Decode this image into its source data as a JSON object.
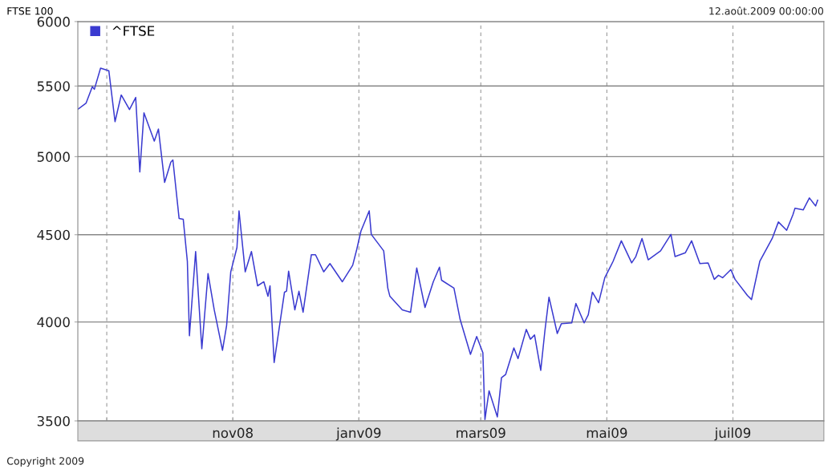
{
  "chart_data": {
    "type": "line",
    "title": "FTSE 100",
    "annotations": [
      "12.août.2009 00:00:00",
      "Copyright 2009"
    ],
    "x": [
      "2008-08-18",
      "2008-08-22",
      "2008-08-25",
      "2008-08-26",
      "2008-08-29",
      "2008-09-02",
      "2008-09-05",
      "2008-09-08",
      "2008-09-12",
      "2008-09-15",
      "2008-09-17",
      "2008-09-19",
      "2008-09-24",
      "2008-09-26",
      "2008-09-29",
      "2008-10-02",
      "2008-10-03",
      "2008-10-06",
      "2008-10-08",
      "2008-10-10",
      "2008-10-11",
      "2008-10-14",
      "2008-10-17",
      "2008-10-20",
      "2008-10-23",
      "2008-10-27",
      "2008-10-29",
      "2008-10-31",
      "2008-11-03",
      "2008-11-04",
      "2008-11-07",
      "2008-11-10",
      "2008-11-13",
      "2008-11-16",
      "2008-11-18",
      "2008-11-19",
      "2008-11-21",
      "2008-11-26",
      "2008-11-27",
      "2008-11-28",
      "2008-12-01",
      "2008-12-03",
      "2008-12-05",
      "2008-12-09",
      "2008-12-11",
      "2008-12-15",
      "2008-12-18",
      "2008-12-24",
      "2008-12-29",
      "2008-12-31",
      "2009-01-02",
      "2009-01-06",
      "2009-01-07",
      "2009-01-13",
      "2009-01-15",
      "2009-01-16",
      "2009-01-22",
      "2009-01-26",
      "2009-01-29",
      "2009-02-02",
      "2009-02-06",
      "2009-02-09",
      "2009-02-10",
      "2009-02-16",
      "2009-02-19",
      "2009-02-24",
      "2009-02-27",
      "2009-03-02",
      "2009-03-03",
      "2009-03-05",
      "2009-03-09",
      "2009-03-11",
      "2009-03-13",
      "2009-03-17",
      "2009-03-19",
      "2009-03-23",
      "2009-03-25",
      "2009-03-27",
      "2009-03-30",
      "2009-04-01",
      "2009-04-03",
      "2009-04-07",
      "2009-04-09",
      "2009-04-14",
      "2009-04-16",
      "2009-04-20",
      "2009-04-22",
      "2009-04-24",
      "2009-04-27",
      "2009-04-30",
      "2009-05-04",
      "2009-05-08",
      "2009-05-13",
      "2009-05-15",
      "2009-05-18",
      "2009-05-21",
      "2009-05-27",
      "2009-06-01",
      "2009-06-03",
      "2009-06-08",
      "2009-06-11",
      "2009-06-15",
      "2009-06-19",
      "2009-06-22",
      "2009-06-24",
      "2009-06-26",
      "2009-06-30",
      "2009-07-02",
      "2009-07-08",
      "2009-07-10",
      "2009-07-14",
      "2009-07-20",
      "2009-07-23",
      "2009-07-27",
      "2009-07-30",
      "2009-07-31",
      "2009-08-04",
      "2009-08-07",
      "2009-08-10",
      "2009-08-11"
    ],
    "series": [
      {
        "name": "^FTSE",
        "color": "#3a3ad0",
        "values": [
          5330,
          5375,
          5495,
          5476,
          5634,
          5615,
          5242,
          5434,
          5328,
          5416,
          4898,
          5305,
          5106,
          5190,
          4829,
          4963,
          4978,
          4600,
          4595,
          4341,
          3926,
          4399,
          3858,
          4270,
          4066,
          3850,
          3982,
          4280,
          4423,
          4647,
          4280,
          4399,
          4200,
          4223,
          4141,
          4200,
          3787,
          4164,
          4170,
          4284,
          4066,
          4169,
          4053,
          4380,
          4380,
          4280,
          4328,
          4223,
          4318,
          4413,
          4522,
          4647,
          4502,
          4403,
          4187,
          4141,
          4066,
          4053,
          4302,
          4079,
          4223,
          4307,
          4232,
          4187,
          4013,
          3829,
          3922,
          3837,
          3507,
          3645,
          3519,
          3710,
          3726,
          3862,
          3807,
          3960,
          3908,
          3930,
          3747,
          3951,
          4136,
          3938,
          3991,
          3995,
          4101,
          3995,
          4039,
          4164,
          4105,
          4246,
          4341,
          4463,
          4332,
          4369,
          4477,
          4350,
          4403,
          4502,
          4369,
          4392,
          4463,
          4328,
          4332,
          4237,
          4260,
          4246,
          4293,
          4237,
          4146,
          4123,
          4341,
          4477,
          4578,
          4527,
          4622,
          4663,
          4653,
          4729,
          4678,
          4714
        ]
      }
    ],
    "log": true,
    "ylim": [
      3500,
      6000
    ],
    "yticks": [
      3500,
      4000,
      4500,
      5000,
      5500,
      6000
    ],
    "xlim": [
      "2008-08-18",
      "2009-08-14"
    ],
    "xticks": [
      {
        "value": "2008-09-01",
        "label": null
      },
      {
        "value": "2008-11-01",
        "label": "nov08"
      },
      {
        "value": "2009-01-01",
        "label": "janv09"
      },
      {
        "value": "2009-03-01",
        "label": "mars09"
      },
      {
        "value": "2009-05-01",
        "label": "mai09"
      },
      {
        "value": "2009-07-01",
        "label": "juil09"
      }
    ],
    "grid": true,
    "legend": "top left"
  }
}
